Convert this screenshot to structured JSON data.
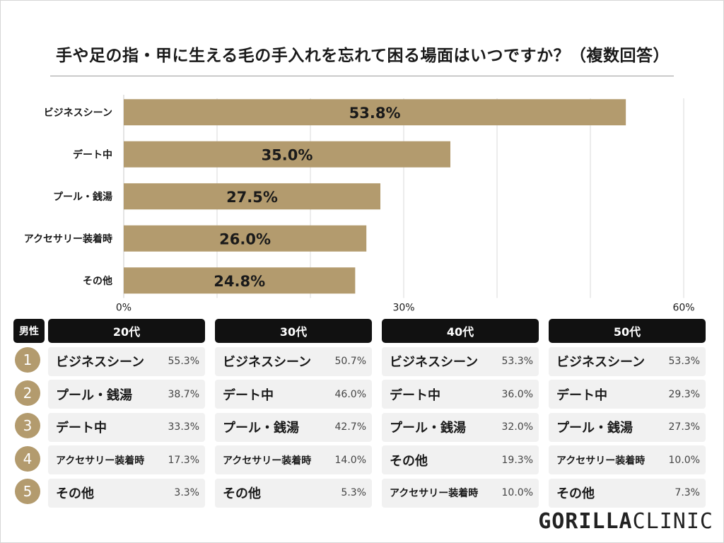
{
  "title": "手や足の指・甲に生える毛の手入れを忘れて困る場面はいつですか？（複数回答）",
  "chart_data": {
    "type": "bar",
    "orientation": "horizontal",
    "title": "手や足の指・甲に生える毛の手入れを忘れて困る場面はいつですか？（複数回答）",
    "categories": [
      "ビジネスシーン",
      "デート中",
      "プール・銭湯",
      "アクセサリー装着時",
      "その他"
    ],
    "values": [
      53.8,
      35.0,
      27.5,
      26.0,
      24.8
    ],
    "value_labels": [
      "53.8%",
      "35.0%",
      "27.5%",
      "26.0%",
      "24.8%"
    ],
    "xlim": [
      0,
      60
    ],
    "tick_values": [
      0,
      30,
      60
    ],
    "tick_labels": [
      "0%",
      "30%",
      "60%"
    ],
    "grid": true,
    "bar_color": "#b39b6e",
    "xlabel": "",
    "ylabel": ""
  },
  "breakdown": {
    "gender_label": "男性",
    "ranks": [
      "1",
      "2",
      "3",
      "4",
      "5"
    ],
    "groups": [
      {
        "age": "20代",
        "items": [
          {
            "name": "ビジネスシーン",
            "pct": "55.3%"
          },
          {
            "name": "プール・銭湯",
            "pct": "38.7%"
          },
          {
            "name": "デート中",
            "pct": "33.3%"
          },
          {
            "name": "アクセサリー装着時",
            "pct": "17.3%"
          },
          {
            "name": "その他",
            "pct": "3.3%"
          }
        ]
      },
      {
        "age": "30代",
        "items": [
          {
            "name": "ビジネスシーン",
            "pct": "50.7%"
          },
          {
            "name": "デート中",
            "pct": "46.0%"
          },
          {
            "name": "プール・銭湯",
            "pct": "42.7%"
          },
          {
            "name": "アクセサリー装着時",
            "pct": "14.0%"
          },
          {
            "name": "その他",
            "pct": "5.3%"
          }
        ]
      },
      {
        "age": "40代",
        "items": [
          {
            "name": "ビジネスシーン",
            "pct": "53.3%"
          },
          {
            "name": "デート中",
            "pct": "36.0%"
          },
          {
            "name": "プール・銭湯",
            "pct": "32.0%"
          },
          {
            "name": "その他",
            "pct": "19.3%"
          },
          {
            "name": "アクセサリー装着時",
            "pct": "10.0%"
          }
        ]
      },
      {
        "age": "50代",
        "items": [
          {
            "name": "ビジネスシーン",
            "pct": "53.3%"
          },
          {
            "name": "デート中",
            "pct": "29.3%"
          },
          {
            "name": "プール・銭湯",
            "pct": "27.3%"
          },
          {
            "name": "アクセサリー装着時",
            "pct": "10.0%"
          },
          {
            "name": "その他",
            "pct": "7.3%"
          }
        ]
      }
    ]
  },
  "logo": {
    "part1": "GORILLA",
    "part2": "CLINIC"
  },
  "colors": {
    "accent": "#b39b6e",
    "header": "#111111",
    "row_bg": "#f1f1f1"
  }
}
